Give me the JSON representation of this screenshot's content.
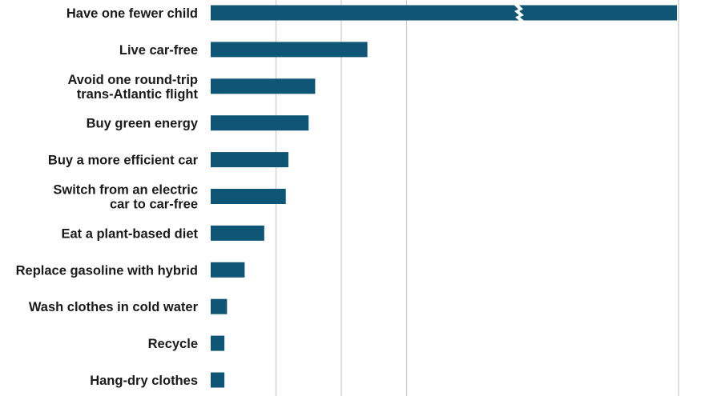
{
  "chart_data": {
    "type": "bar",
    "orientation": "horizontal",
    "categories": [
      [
        "Have one fewer child"
      ],
      [
        "Live car-free"
      ],
      [
        "Avoid one round-trip",
        "trans-Atlantic flight"
      ],
      [
        "Buy green energy"
      ],
      [
        "Buy a more efficient car"
      ],
      [
        "Switch from an electric",
        "car to car-free"
      ],
      [
        "Eat a plant-based diet"
      ],
      [
        "Replace gasoline with hybrid"
      ],
      [
        "Wash clothes in cold water"
      ],
      [
        "Recycle"
      ],
      [
        "Hang-dry clothes"
      ]
    ],
    "values": [
      58.6,
      2.4,
      1.6,
      1.5,
      1.19,
      1.15,
      0.82,
      0.52,
      0.25,
      0.21,
      0.21
    ],
    "axis_break": {
      "value": 58.6,
      "shown_as_broken": true
    },
    "xlim": [
      0,
      7
    ],
    "gridlines": [
      1,
      2,
      3,
      7
    ],
    "grid": true,
    "colors": {
      "bar": "#0f5575",
      "grid": "#c8c8c8",
      "text": "#1a1a1a"
    }
  }
}
